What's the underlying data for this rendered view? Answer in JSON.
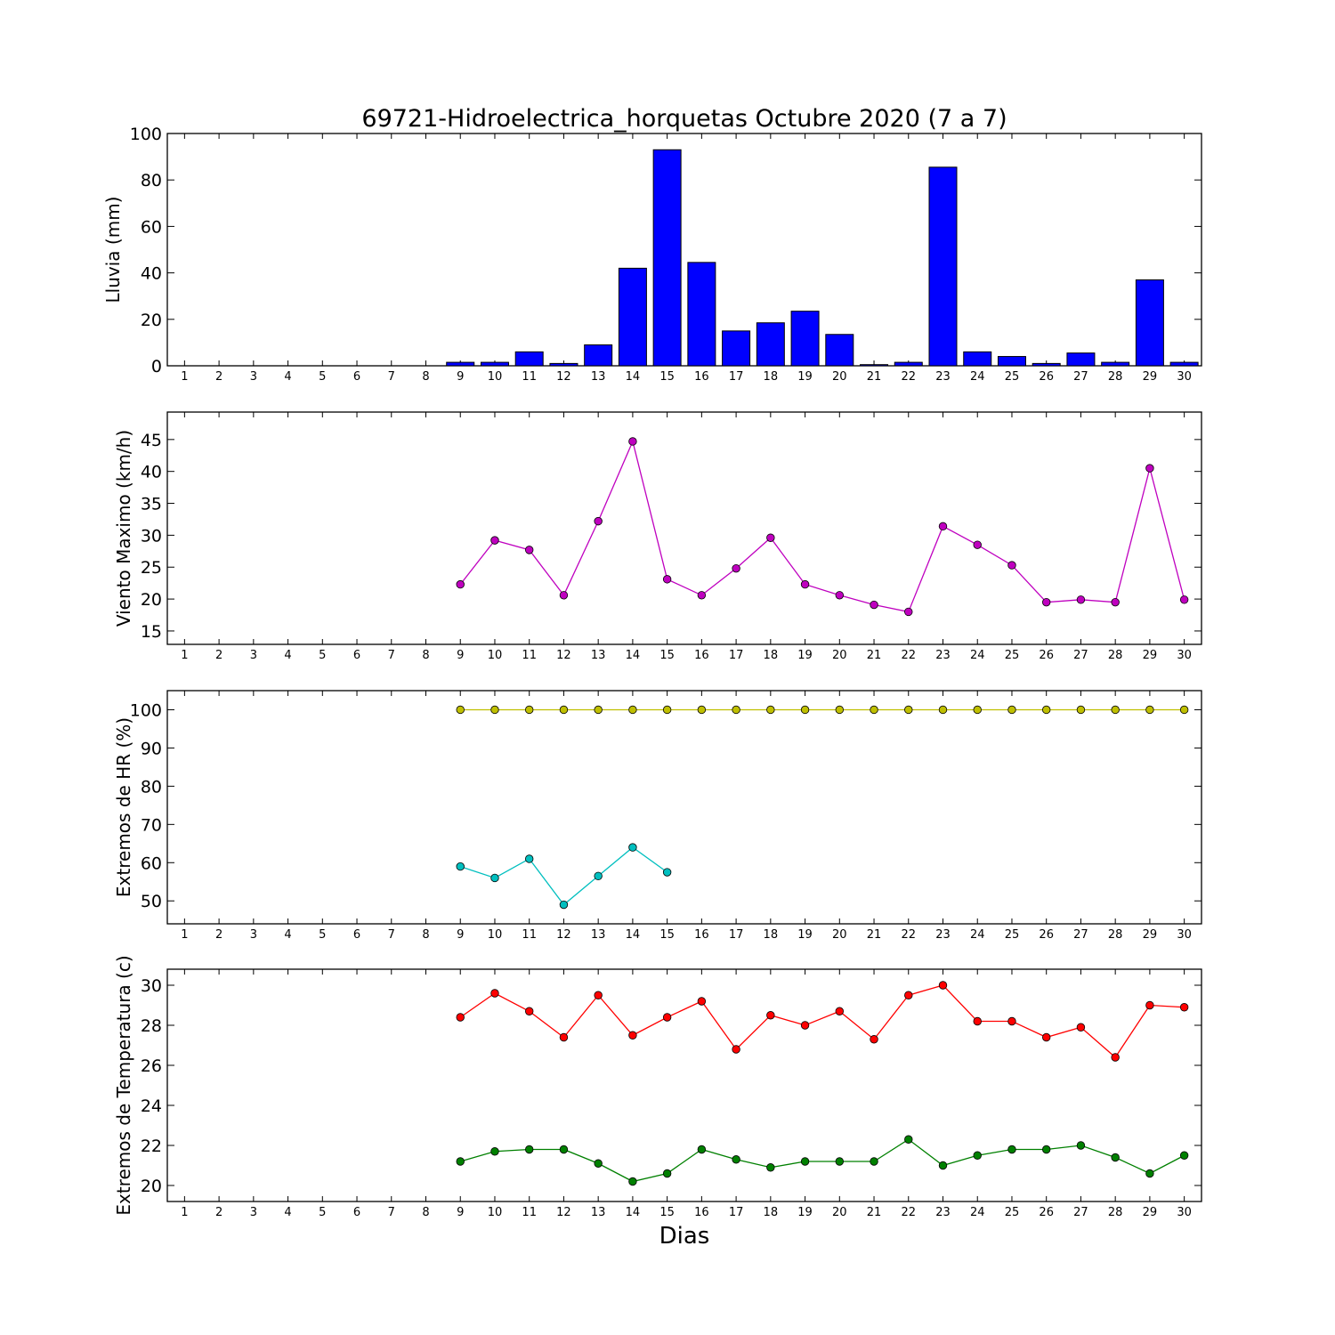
{
  "figure": {
    "title": "69721-Hidroelectrica_horquetas Octubre 2020  (7 a 7)",
    "xlabel": "Dias"
  },
  "chart_data": [
    {
      "type": "bar",
      "ylabel": "Lluvia (mm)",
      "ylim": [
        0,
        100
      ],
      "yticks": [
        0,
        20,
        40,
        60,
        80,
        100
      ],
      "x": [
        1,
        2,
        3,
        4,
        5,
        6,
        7,
        8,
        9,
        10,
        11,
        12,
        13,
        14,
        15,
        16,
        17,
        18,
        19,
        20,
        21,
        22,
        23,
        24,
        25,
        26,
        27,
        28,
        29,
        30
      ],
      "xlim": [
        0.5,
        30.5
      ],
      "series": [
        {
          "color": "#0000ff",
          "values": [
            null,
            null,
            null,
            null,
            null,
            null,
            null,
            null,
            1.5,
            1.5,
            6,
            1,
            9,
            42,
            93,
            44.5,
            15,
            18.5,
            23.5,
            13.5,
            0.5,
            1.5,
            85.5,
            6,
            4,
            1,
            5.5,
            1.5,
            37,
            1.5
          ]
        }
      ]
    },
    {
      "type": "line",
      "ylabel": "Viento Maximo (km/h)",
      "ylim": [
        12.9,
        49.3
      ],
      "yticks": [
        15,
        20,
        25,
        30,
        35,
        40,
        45
      ],
      "x": [
        1,
        2,
        3,
        4,
        5,
        6,
        7,
        8,
        9,
        10,
        11,
        12,
        13,
        14,
        15,
        16,
        17,
        18,
        19,
        20,
        21,
        22,
        23,
        24,
        25,
        26,
        27,
        28,
        29,
        30
      ],
      "xlim": [
        0.5,
        30.5
      ],
      "series": [
        {
          "color": "#bf00bf",
          "values": [
            null,
            null,
            null,
            null,
            null,
            null,
            null,
            null,
            22.3,
            29.2,
            27.7,
            20.6,
            32.2,
            44.7,
            23.1,
            20.6,
            24.8,
            29.6,
            22.3,
            20.6,
            19.1,
            18.0,
            31.4,
            28.5,
            25.3,
            19.5,
            19.9,
            19.5,
            40.5,
            19.9
          ]
        }
      ]
    },
    {
      "type": "line",
      "ylabel": "Extremos de HR (%)",
      "ylim": [
        44,
        105
      ],
      "yticks": [
        50,
        60,
        70,
        80,
        90,
        100
      ],
      "x": [
        1,
        2,
        3,
        4,
        5,
        6,
        7,
        8,
        9,
        10,
        11,
        12,
        13,
        14,
        15,
        16,
        17,
        18,
        19,
        20,
        21,
        22,
        23,
        24,
        25,
        26,
        27,
        28,
        29,
        30
      ],
      "xlim": [
        0.5,
        30.5
      ],
      "series": [
        {
          "color": "#bfbf00",
          "values": [
            null,
            null,
            null,
            null,
            null,
            null,
            null,
            null,
            100,
            100,
            100,
            100,
            100,
            100,
            100,
            100,
            100,
            100,
            100,
            100,
            100,
            100,
            100,
            100,
            100,
            100,
            100,
            100,
            100,
            100
          ]
        },
        {
          "color": "#00bfbf",
          "values": [
            null,
            null,
            null,
            null,
            null,
            null,
            null,
            null,
            59,
            56,
            61,
            49,
            56.5,
            64,
            57.5,
            null,
            null,
            null,
            null,
            null,
            null,
            null,
            null,
            null,
            null,
            null,
            null,
            null,
            null,
            null
          ]
        }
      ]
    },
    {
      "type": "line",
      "ylabel": "Extremos de Temperatura (c)",
      "ylim": [
        19.2,
        30.8
      ],
      "yticks": [
        20,
        22,
        24,
        26,
        28,
        30
      ],
      "x": [
        1,
        2,
        3,
        4,
        5,
        6,
        7,
        8,
        9,
        10,
        11,
        12,
        13,
        14,
        15,
        16,
        17,
        18,
        19,
        20,
        21,
        22,
        23,
        24,
        25,
        26,
        27,
        28,
        29,
        30
      ],
      "xlim": [
        0.5,
        30.5
      ],
      "series": [
        {
          "color": "#ff0000",
          "values": [
            null,
            null,
            null,
            null,
            null,
            null,
            null,
            null,
            28.4,
            29.6,
            28.7,
            27.4,
            29.5,
            27.5,
            28.4,
            29.2,
            26.8,
            28.5,
            28.0,
            28.7,
            27.3,
            29.5,
            30.0,
            28.2,
            28.2,
            27.4,
            27.9,
            26.4,
            29.0,
            28.9
          ]
        },
        {
          "color": "#008000",
          "values": [
            null,
            null,
            null,
            null,
            null,
            null,
            null,
            null,
            21.2,
            21.7,
            21.8,
            21.8,
            21.1,
            20.2,
            20.6,
            21.8,
            21.3,
            20.9,
            21.2,
            21.2,
            21.2,
            22.3,
            21.0,
            21.5,
            21.8,
            21.8,
            22.0,
            21.4,
            20.6,
            21.5
          ]
        }
      ]
    }
  ]
}
